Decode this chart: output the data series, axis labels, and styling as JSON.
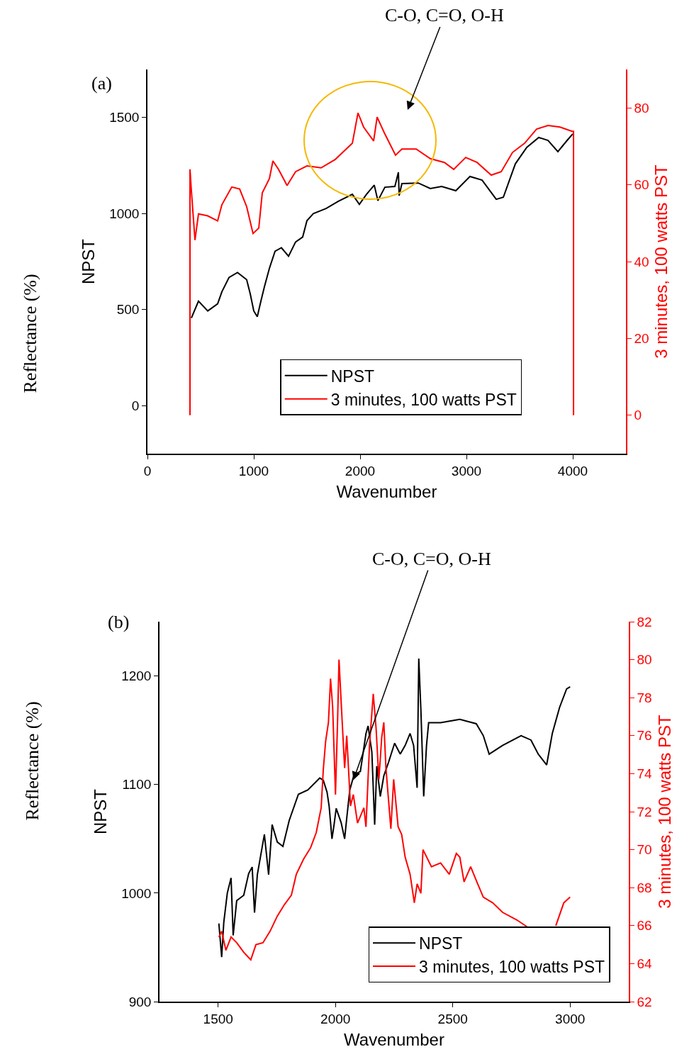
{
  "chart_data": [
    {
      "type": "line",
      "xlabel": "Wavenumber",
      "ylabel": "NPST",
      "y2label": "3 minutes, 100 watts PST",
      "xlim": [
        0,
        4500
      ],
      "xticks": [
        0,
        1000,
        2000,
        3000,
        4000
      ],
      "ylim": [
        -250,
        1750
      ],
      "yticks": [
        0,
        500,
        1000,
        1500
      ],
      "y2lim": [
        -10,
        90
      ],
      "y2ticks": [
        0,
        20,
        40,
        60,
        80
      ],
      "legend": "bottom",
      "annotations": [
        "(a)",
        "Reflectance (%)",
        "C-O, C=O, O-H"
      ],
      "series": [
        {
          "name": "NPST",
          "color": "#000000",
          "x": [
            413,
            480,
            567,
            660,
            700,
            767,
            847,
            933,
            967,
            1000,
            1033,
            1067,
            1100,
            1147,
            1200,
            1260,
            1327,
            1393,
            1460,
            1500,
            1560,
            1680,
            1793,
            1927,
            1993,
            2060,
            2133,
            2167,
            2233,
            2327,
            2360,
            2367,
            2393,
            2547,
            2660,
            2767,
            2900,
            3033,
            3147,
            3280,
            3347,
            3460,
            3567,
            3680,
            3767,
            3860,
            3947,
            4000
          ],
          "values": [
            456,
            544,
            493,
            530,
            593,
            667,
            693,
            656,
            581,
            493,
            463,
            544,
            619,
            715,
            804,
            822,
            778,
            852,
            878,
            963,
            1000,
            1026,
            1063,
            1100,
            1048,
            1100,
            1148,
            1067,
            1137,
            1141,
            1215,
            1093,
            1156,
            1159,
            1130,
            1141,
            1119,
            1193,
            1174,
            1074,
            1085,
            1259,
            1344,
            1396,
            1381,
            1322,
            1381,
            1415
          ]
        },
        {
          "name": "3 minutes, 100 watts PST",
          "color": "#ff0000",
          "axis": "y2",
          "x": [
            400,
            400,
            413,
            447,
            480,
            567,
            660,
            700,
            793,
            867,
            933,
            993,
            1047,
            1080,
            1147,
            1180,
            1233,
            1313,
            1393,
            1500,
            1633,
            1767,
            1927,
            1980,
            2033,
            2127,
            2160,
            2233,
            2333,
            2393,
            2527,
            2660,
            2793,
            2880,
            2993,
            3100,
            3233,
            3327,
            3433,
            3547,
            3660,
            3767,
            3880,
            3993,
            4007,
            4007
          ],
          "values": [
            0,
            64,
            58.5,
            45.6,
            52.4,
            51.9,
            50.6,
            54.8,
            59.4,
            58.9,
            54.3,
            47.3,
            48.7,
            57.9,
            61.6,
            66.2,
            64.0,
            59.8,
            63.4,
            64.9,
            64.4,
            66.6,
            70.8,
            78.7,
            75.0,
            71.4,
            77.6,
            73.2,
            67.7,
            69.3,
            69.3,
            66.8,
            65.8,
            64.0,
            67.1,
            65.8,
            62.5,
            63.4,
            68.4,
            70.8,
            74.5,
            75.4,
            75.0,
            73.9,
            73.9,
            0
          ]
        }
      ]
    },
    {
      "type": "line",
      "xlabel": "Wavenumber",
      "ylabel": "NPST",
      "y2label": "3 minutes, 100 watts PST",
      "xlim": [
        1250,
        3250
      ],
      "xticks": [
        1500,
        2000,
        2500,
        3000
      ],
      "ylim": [
        900,
        1250
      ],
      "yticks": [
        900,
        1000,
        1100,
        1200
      ],
      "y2lim": [
        62,
        82
      ],
      "y2ticks": [
        62,
        64,
        66,
        68,
        70,
        72,
        74,
        76,
        78,
        80,
        82
      ],
      "legend": "bottom right",
      "annotations": [
        "(b)",
        "Reflectance (%)",
        {
          "text": "C-O, C=O, O-H",
          "x": 2076,
          "y": 1104
        }
      ],
      "series": [
        {
          "name": "NPST",
          "color": "#000000",
          "x": [
            1503,
            1515,
            1524,
            1539,
            1555,
            1564,
            1579,
            1609,
            1630,
            1645,
            1655,
            1667,
            1697,
            1715,
            1730,
            1752,
            1776,
            1803,
            1842,
            1882,
            1933,
            1948,
            1964,
            1973,
            1985,
            1994,
            2003,
            2024,
            2039,
            2048,
            2061,
            2079,
            2106,
            2130,
            2139,
            2155,
            2167,
            2176,
            2191,
            2206,
            2227,
            2252,
            2276,
            2297,
            2318,
            2333,
            2348,
            2355,
            2364,
            2376,
            2388,
            2397,
            2448,
            2530,
            2600,
            2630,
            2655,
            2712,
            2791,
            2833,
            2864,
            2900,
            2924,
            2955,
            2985,
            3000
          ],
          "values": [
            972,
            941,
            973,
            1000,
            1014,
            961,
            993,
            998,
            1018,
            1024,
            982,
            1017,
            1054,
            1017,
            1063,
            1047,
            1043,
            1067,
            1091,
            1095,
            1106,
            1104,
            1093,
            1080,
            1050,
            1063,
            1078,
            1065,
            1050,
            1069,
            1095,
            1109,
            1112,
            1147,
            1154,
            1130,
            1063,
            1117,
            1089,
            1108,
            1121,
            1138,
            1128,
            1136,
            1147,
            1136,
            1097,
            1216,
            1169,
            1089,
            1136,
            1157,
            1157,
            1160,
            1156,
            1145,
            1128,
            1136,
            1145,
            1141,
            1128,
            1118,
            1147,
            1171,
            1188,
            1190
          ]
        },
        {
          "name": "3 minutes, 100 watts PST",
          "color": "#ff0000",
          "axis": "y2",
          "x": [
            1503,
            1515,
            1533,
            1555,
            1579,
            1609,
            1639,
            1661,
            1691,
            1721,
            1752,
            1782,
            1812,
            1833,
            1864,
            1894,
            1918,
            1939,
            1948,
            1958,
            1970,
            1979,
            1988,
            2000,
            2009,
            2015,
            2030,
            2039,
            2048,
            2064,
            2076,
            2094,
            2121,
            2130,
            2145,
            2161,
            2173,
            2185,
            2197,
            2206,
            2215,
            2236,
            2248,
            2267,
            2282,
            2297,
            2318,
            2336,
            2348,
            2364,
            2373,
            2409,
            2448,
            2485,
            2515,
            2530,
            2548,
            2576,
            2606,
            2630,
            2670,
            2712,
            2773,
            2821,
            2880,
            2939,
            2973,
            3000
          ],
          "values": [
            65.4,
            65.7,
            64.7,
            65.4,
            65.1,
            64.6,
            64.2,
            65.0,
            65.1,
            65.7,
            66.5,
            67.1,
            67.6,
            68.7,
            69.5,
            70.1,
            70.9,
            72.2,
            74.2,
            75.7,
            76.7,
            79.0,
            77.5,
            72.9,
            76.8,
            80.0,
            76.4,
            74.3,
            76.0,
            72.3,
            72.9,
            71.4,
            72.2,
            71.2,
            75.5,
            78.2,
            76.4,
            73.7,
            75.9,
            76.7,
            74.3,
            71.1,
            73.7,
            71.2,
            70.8,
            69.6,
            68.7,
            67.2,
            68.2,
            67.7,
            70.0,
            69.1,
            69.3,
            68.7,
            69.8,
            69.6,
            68.3,
            69.1,
            68.2,
            67.5,
            67.2,
            66.7,
            66.3,
            65.9,
            null,
            66.0,
            67.2,
            67.5
          ]
        }
      ]
    }
  ]
}
